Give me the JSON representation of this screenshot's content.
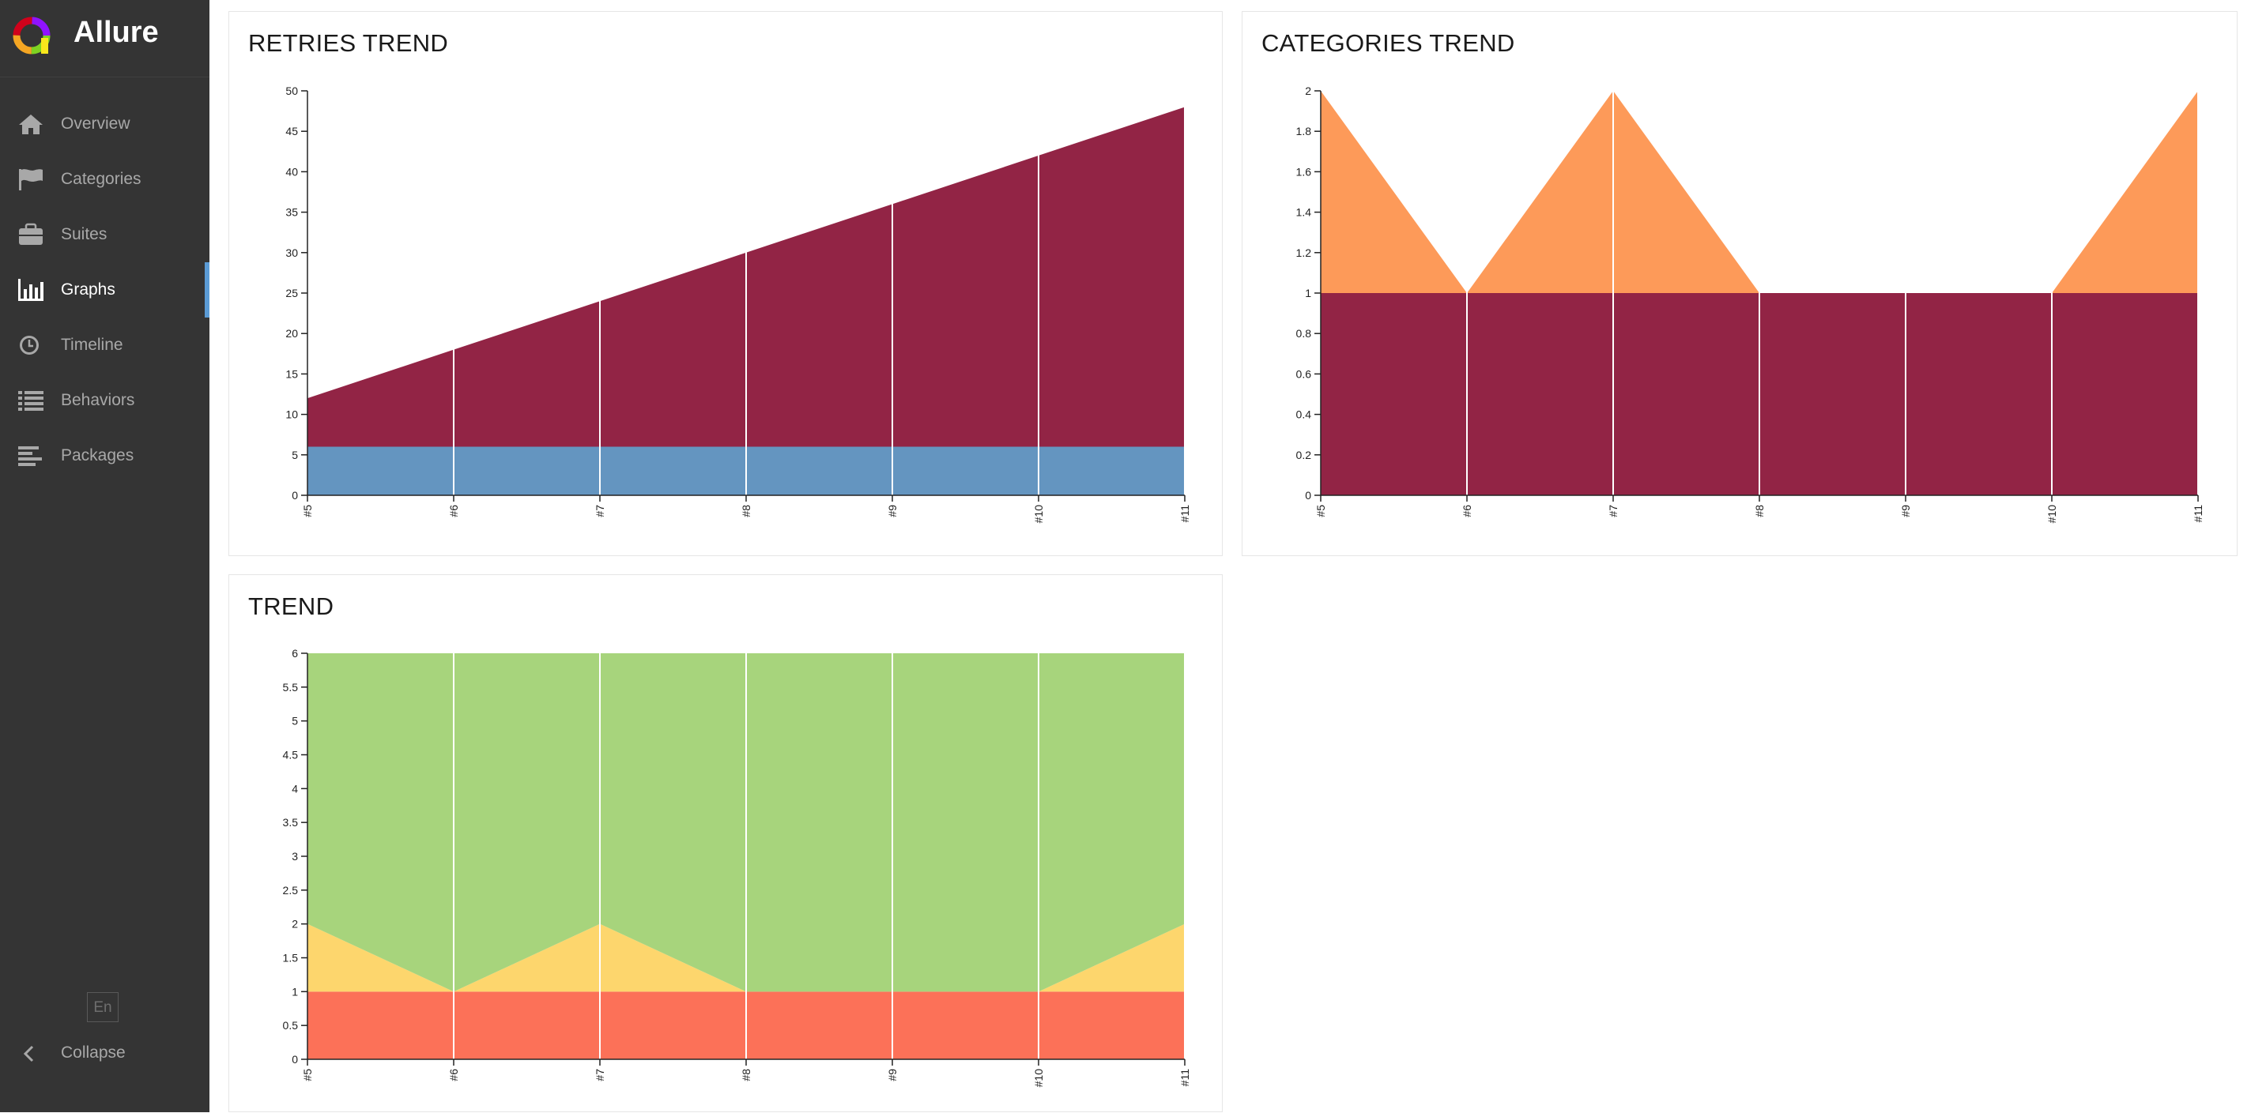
{
  "app": {
    "title": "Allure"
  },
  "sidebar": {
    "items": [
      {
        "label": "Overview",
        "icon": "home-icon"
      },
      {
        "label": "Categories",
        "icon": "flag-icon"
      },
      {
        "label": "Suites",
        "icon": "briefcase-icon"
      },
      {
        "label": "Graphs",
        "icon": "bar-chart-icon",
        "active": true
      },
      {
        "label": "Timeline",
        "icon": "clock-icon"
      },
      {
        "label": "Behaviors",
        "icon": "list-icon"
      },
      {
        "label": "Packages",
        "icon": "align-left-icon"
      }
    ],
    "language": "En",
    "collapse_label": "Collapse"
  },
  "colors": {
    "sidebar_bg": "#343434",
    "active_marker": "#5b9bd5",
    "retries": "#922445",
    "run": "#6495c0",
    "product_defects": "#922445",
    "test_defects": "#fd9a59",
    "passed": "#a7d47c",
    "broken": "#fdd66d",
    "failed": "#fc7158"
  },
  "chart_data": [
    {
      "id": "retries",
      "type": "area",
      "title": "RETRIES TREND",
      "x": [
        "#5",
        "#6",
        "#7",
        "#8",
        "#9",
        "#10",
        "#11"
      ],
      "ylim": [
        0,
        50
      ],
      "yticks": [
        0,
        5,
        10,
        15,
        20,
        25,
        30,
        35,
        40,
        45,
        50
      ],
      "stacked": true,
      "series": [
        {
          "values": [
            6,
            6,
            6,
            6,
            6,
            6,
            6
          ],
          "color": "#6495c0"
        },
        {
          "values": [
            6,
            12,
            18,
            24,
            30,
            36,
            42
          ],
          "color": "#922445"
        }
      ]
    },
    {
      "id": "categories",
      "type": "area",
      "title": "CATEGORIES TREND",
      "x": [
        "#5",
        "#6",
        "#7",
        "#8",
        "#9",
        "#10",
        "#11"
      ],
      "ylim": [
        0,
        2
      ],
      "yticks": [
        0,
        0.2,
        0.4,
        0.6,
        0.8,
        1,
        1.2,
        1.4,
        1.6,
        1.8,
        2
      ],
      "stacked": true,
      "series": [
        {
          "values": [
            1,
            1,
            1,
            1,
            1,
            1,
            1
          ],
          "color": "#922445"
        },
        {
          "values": [
            1,
            0,
            1,
            0,
            0,
            0,
            1
          ],
          "color": "#fd9a59"
        }
      ]
    },
    {
      "id": "trend",
      "type": "area",
      "title": "TREND",
      "x": [
        "#5",
        "#6",
        "#7",
        "#8",
        "#9",
        "#10",
        "#11"
      ],
      "ylim": [
        0,
        6
      ],
      "yticks": [
        0,
        0.5,
        1,
        1.5,
        2,
        2.5,
        3,
        3.5,
        4,
        4.5,
        5,
        5.5,
        6
      ],
      "stacked": true,
      "series": [
        {
          "values": [
            1,
            1,
            1,
            1,
            1,
            1,
            1
          ],
          "color": "#fc7158"
        },
        {
          "values": [
            1,
            0,
            1,
            0,
            0,
            0,
            1
          ],
          "color": "#fdd66d"
        },
        {
          "values": [
            4,
            5,
            4,
            5,
            5,
            5,
            4
          ],
          "color": "#a7d47c"
        }
      ]
    }
  ]
}
